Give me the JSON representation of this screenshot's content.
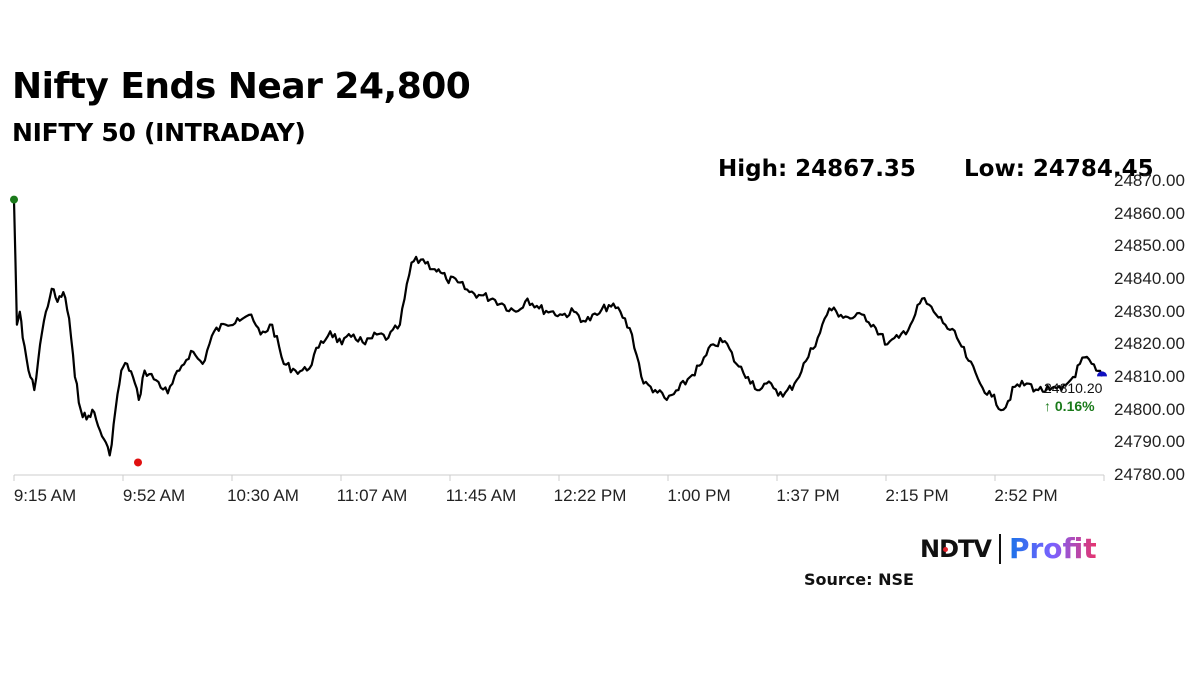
{
  "header": {
    "title": "Nifty Ends Near 24,800",
    "subtitle": "NIFTY 50 (INTRADAY)",
    "high_label": "High: 24867.35",
    "low_label": "Low: 24784.45"
  },
  "last": {
    "value": "24810.20",
    "change": "↑ 0.16%",
    "change_color": "#1a7a1a"
  },
  "footer": {
    "brand_left": "NDTV",
    "brand_right": "Profit",
    "source": "Source: NSE"
  },
  "colors": {
    "line": "#000000",
    "open_marker": "#1a7a1a",
    "low_marker": "#e01010",
    "close_marker": "#1010c0",
    "axis": "#cccccc"
  },
  "chart_data": {
    "type": "line",
    "title": "Nifty Ends Near 24,800",
    "subtitle": "NIFTY 50 (INTRADAY)",
    "xlabel": "",
    "ylabel": "",
    "ylim": [
      24780,
      24870
    ],
    "yticks": [
      "24870.00",
      "24860.00",
      "24850.00",
      "24840.00",
      "24830.00",
      "24820.00",
      "24810.00",
      "24800.00",
      "24790.00",
      "24780.00"
    ],
    "xticks": [
      "9:15 AM",
      "9:52 AM",
      "10:30 AM",
      "11:07 AM",
      "11:45 AM",
      "12:22 PM",
      "1:00 PM",
      "1:37 PM",
      "2:15 PM",
      "2:52 PM"
    ],
    "high": 24867.35,
    "low": 24784.45,
    "last": 24810.2,
    "change_pct": 0.16,
    "grid": false,
    "series": [
      {
        "name": "NIFTY 50",
        "x_time": [
          "9:15",
          "9:16",
          "9:17",
          "9:18",
          "9:20",
          "9:22",
          "9:24",
          "9:26",
          "9:28",
          "9:30",
          "9:32",
          "9:34",
          "9:36",
          "9:38",
          "9:40",
          "9:42",
          "9:44",
          "9:46",
          "9:48",
          "9:50",
          "9:52",
          "9:54",
          "9:56",
          "9:58",
          "10:00",
          "10:04",
          "10:08",
          "10:12",
          "10:16",
          "10:20",
          "10:24",
          "10:28",
          "10:32",
          "10:36",
          "10:40",
          "10:44",
          "10:48",
          "10:52",
          "10:56",
          "11:00",
          "11:04",
          "11:08",
          "11:12",
          "11:16",
          "11:20",
          "11:24",
          "11:28",
          "11:32",
          "11:36",
          "11:40",
          "11:42",
          "11:44",
          "11:48",
          "11:52",
          "11:56",
          "12:00",
          "12:04",
          "12:08",
          "12:12",
          "12:16",
          "12:20",
          "12:24",
          "12:28",
          "12:32",
          "12:36",
          "12:40",
          "12:44",
          "12:48",
          "12:52",
          "12:56",
          "13:00",
          "13:04",
          "13:08",
          "13:12",
          "13:16",
          "13:20",
          "13:24",
          "13:28",
          "13:32",
          "13:36",
          "13:40",
          "13:44",
          "13:48",
          "13:52",
          "13:56",
          "14:00",
          "14:04",
          "14:08",
          "14:12",
          "14:16",
          "14:20",
          "14:24",
          "14:28",
          "14:32",
          "14:36",
          "14:40",
          "14:44",
          "14:48",
          "14:52",
          "14:56",
          "15:00",
          "15:04",
          "15:08",
          "15:12",
          "15:16",
          "15:20",
          "15:24",
          "15:28",
          "15:30"
        ],
        "values": [
          24864,
          24826,
          24830,
          24822,
          24812,
          24806,
          24820,
          24830,
          24837,
          24833,
          24836,
          24828,
          24810,
          24800,
          24797,
          24800,
          24795,
          24791,
          24786,
          24800,
          24812,
          24814,
          24810,
          24803,
          24812,
          24809,
          24805,
          24812,
          24818,
          24814,
          24824,
          24826,
          24828,
          24829,
          24823,
          24826,
          24814,
          24812,
          24812,
          24819,
          24824,
          24820,
          24823,
          24820,
          24823,
          24822,
          24826,
          24845,
          24846,
          24843,
          24842,
          24840,
          24839,
          24836,
          24835,
          24834,
          24832,
          24830,
          24834,
          24831,
          24830,
          24829,
          24830,
          24827,
          24829,
          24832,
          24830,
          24823,
          24808,
          24806,
          24803,
          24806,
          24810,
          24814,
          24820,
          24821,
          24814,
          24810,
          24806,
          24808,
          24804,
          24808,
          24815,
          24822,
          24831,
          24829,
          24828,
          24829,
          24825,
          24820,
          24822,
          24826,
          24834,
          24830,
          24826,
          24822,
          24815,
          24808,
          24804,
          24800,
          24807,
          24808,
          24806,
          24806,
          24806,
          24810,
          24816,
          24812,
          24810.2
        ]
      }
    ]
  }
}
